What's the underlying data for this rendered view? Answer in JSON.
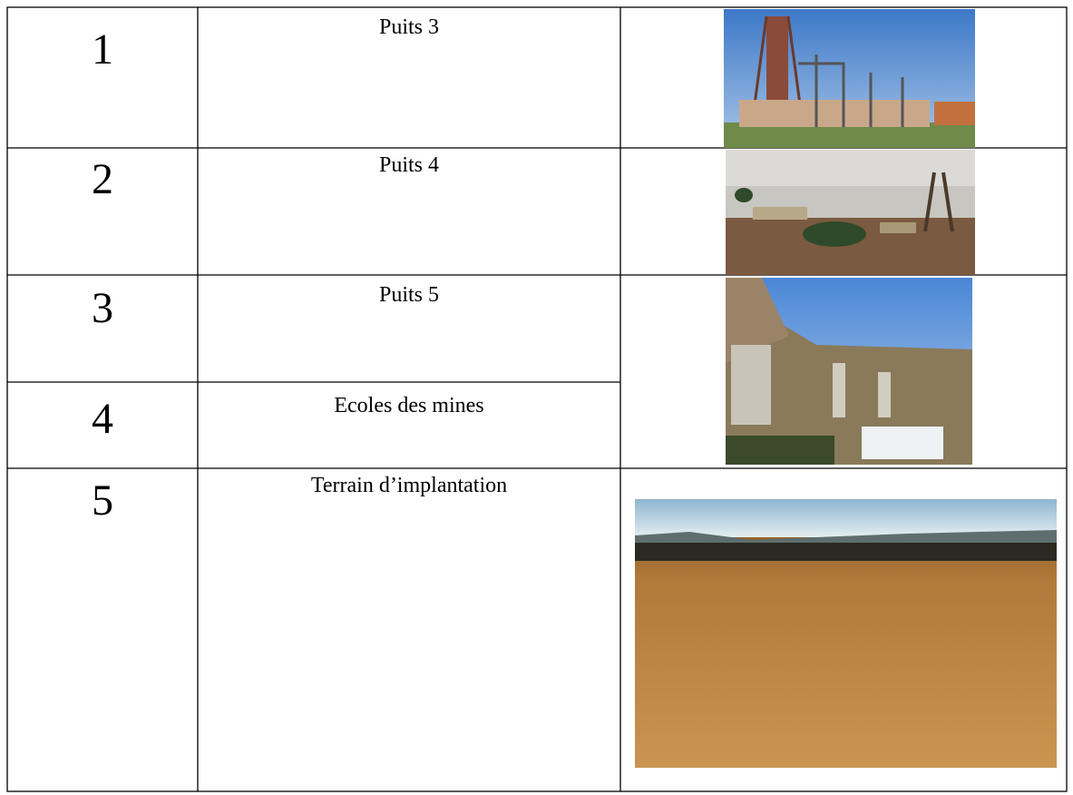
{
  "table": {
    "rows": [
      {
        "number": 1,
        "label": "Puits 3"
      },
      {
        "number": 2,
        "label": "Puits 4"
      },
      {
        "number": 3,
        "label": "Puits 5"
      },
      {
        "number": 4,
        "label": "Ecoles des mines"
      },
      {
        "number": 5,
        "label": "Terrain d’implantation"
      }
    ]
  }
}
